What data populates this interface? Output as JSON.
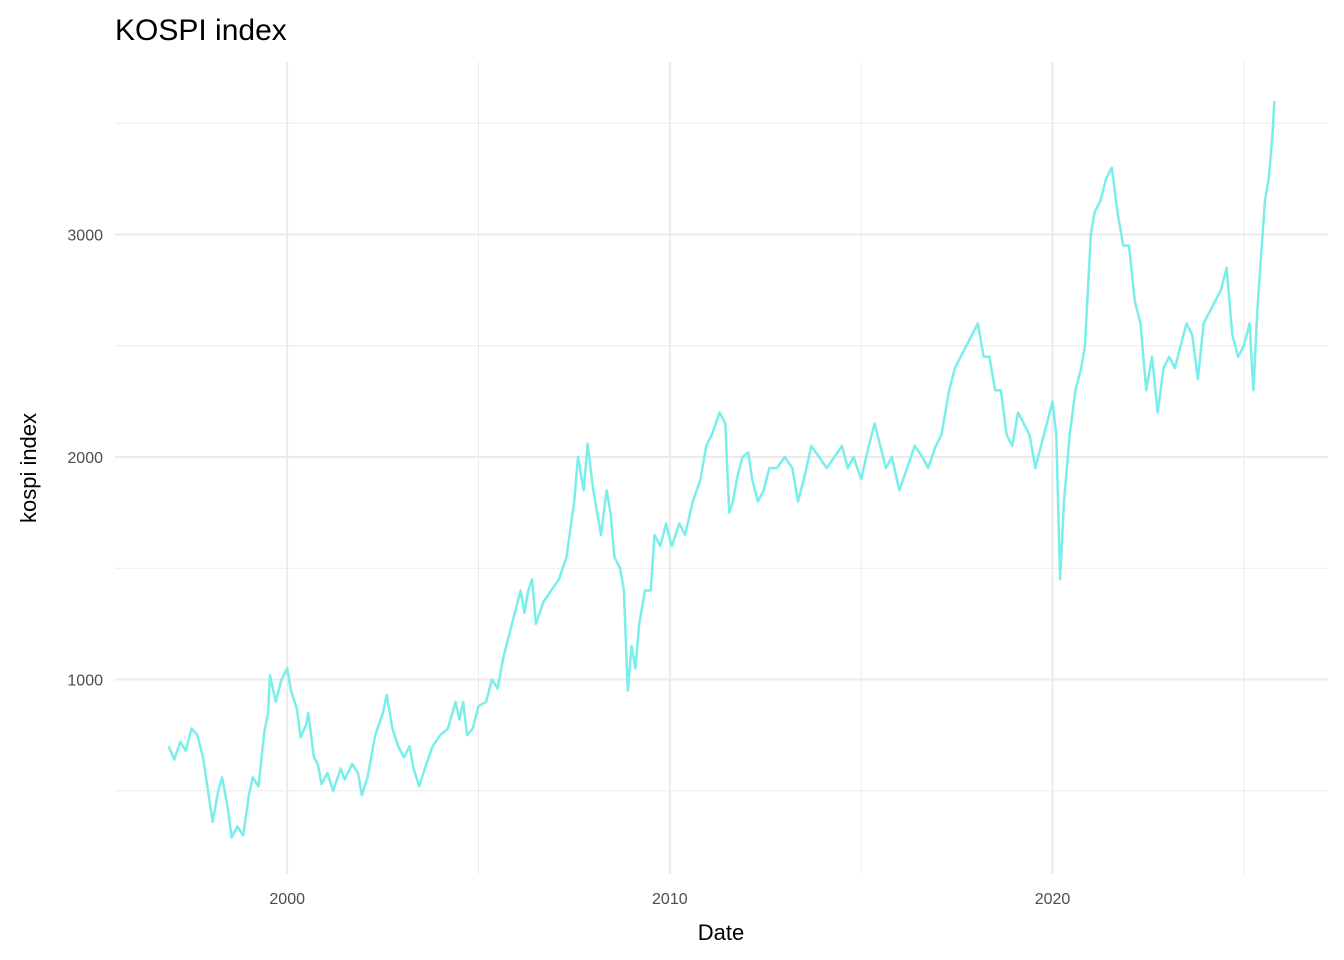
{
  "chart_data": {
    "type": "line",
    "title": "KOSPI index",
    "x_label": "Date",
    "y_label": "kospi index",
    "xlim": [
      1995.5,
      2027.2
    ],
    "ylim": [
      126,
      3775
    ],
    "xticks": [
      2000,
      2010,
      2020
    ],
    "yticks": [
      1000,
      2000,
      3000
    ],
    "xminor": [
      2005,
      2015,
      2025
    ],
    "yminor": [
      500,
      1500,
      2500,
      3500
    ],
    "grid": true,
    "series": [
      {
        "name": "kospi",
        "color": "#7aeeea",
        "x": [
          1996.9,
          1997.05,
          1997.2,
          1997.35,
          1997.5,
          1997.65,
          1997.8,
          1997.95,
          1998.05,
          1998.2,
          1998.3,
          1998.45,
          1998.55,
          1998.7,
          1998.85,
          1999.0,
          1999.1,
          1999.25,
          1999.4,
          1999.5,
          1999.55,
          1999.7,
          1999.85,
          2000.0,
          2000.1,
          2000.25,
          2000.35,
          2000.5,
          2000.55,
          2000.7,
          2000.8,
          2000.9,
          2001.05,
          2001.2,
          2001.4,
          2001.5,
          2001.7,
          2001.85,
          2001.95,
          2002.1,
          2002.3,
          2002.5,
          2002.6,
          2002.75,
          2002.9,
          2003.05,
          2003.2,
          2003.3,
          2003.45,
          2003.6,
          2003.8,
          2004.0,
          2004.2,
          2004.4,
          2004.5,
          2004.6,
          2004.7,
          2004.85,
          2005.0,
          2005.2,
          2005.35,
          2005.5,
          2005.65,
          2005.8,
          2005.95,
          2006.1,
          2006.2,
          2006.3,
          2006.4,
          2006.5,
          2006.7,
          2006.9,
          2007.1,
          2007.3,
          2007.5,
          2007.6,
          2007.75,
          2007.85,
          2008.0,
          2008.2,
          2008.35,
          2008.45,
          2008.55,
          2008.7,
          2008.8,
          2008.9,
          2009.0,
          2009.1,
          2009.2,
          2009.35,
          2009.5,
          2009.6,
          2009.75,
          2009.9,
          2010.05,
          2010.25,
          2010.4,
          2010.6,
          2010.8,
          2010.95,
          2011.1,
          2011.3,
          2011.45,
          2011.55,
          2011.65,
          2011.75,
          2011.9,
          2012.05,
          2012.15,
          2012.3,
          2012.45,
          2012.6,
          2012.8,
          2013.0,
          2013.2,
          2013.35,
          2013.5,
          2013.7,
          2013.9,
          2014.1,
          2014.3,
          2014.5,
          2014.65,
          2014.8,
          2015.0,
          2015.2,
          2015.35,
          2015.5,
          2015.65,
          2015.8,
          2016.0,
          2016.2,
          2016.4,
          2016.6,
          2016.75,
          2016.95,
          2017.1,
          2017.3,
          2017.45,
          2017.6,
          2017.75,
          2017.9,
          2018.05,
          2018.2,
          2018.35,
          2018.5,
          2018.65,
          2018.8,
          2018.95,
          2019.1,
          2019.25,
          2019.4,
          2019.55,
          2019.7,
          2019.85,
          2020.0,
          2020.1,
          2020.2,
          2020.3,
          2020.45,
          2020.6,
          2020.75,
          2020.85,
          2021.0,
          2021.1,
          2021.25,
          2021.4,
          2021.55,
          2021.7,
          2021.85,
          2022.0,
          2022.15,
          2022.3,
          2022.45,
          2022.6,
          2022.75,
          2022.9,
          2023.05,
          2023.2,
          2023.35,
          2023.5,
          2023.65,
          2023.8,
          2023.95,
          2024.1,
          2024.25,
          2024.4,
          2024.55,
          2024.7,
          2024.85,
          2025.0,
          2025.15,
          2025.25,
          2025.35,
          2025.45,
          2025.55,
          2025.65,
          2025.75,
          2025.8
        ],
        "values": [
          700,
          640,
          720,
          680,
          780,
          750,
          650,
          480,
          360,
          500,
          560,
          420,
          290,
          340,
          300,
          480,
          560,
          520,
          760,
          850,
          1020,
          900,
          1000,
          1050,
          950,
          870,
          740,
          800,
          850,
          650,
          620,
          530,
          580,
          500,
          600,
          550,
          620,
          580,
          480,
          560,
          750,
          850,
          930,
          780,
          700,
          650,
          700,
          600,
          520,
          600,
          700,
          750,
          780,
          900,
          820,
          900,
          750,
          780,
          880,
          900,
          1000,
          960,
          1100,
          1200,
          1300,
          1400,
          1300,
          1400,
          1450,
          1250,
          1350,
          1400,
          1450,
          1550,
          1800,
          2000,
          1850,
          2060,
          1850,
          1650,
          1850,
          1750,
          1550,
          1500,
          1400,
          950,
          1150,
          1050,
          1250,
          1400,
          1400,
          1650,
          1600,
          1700,
          1600,
          1700,
          1650,
          1800,
          1900,
          2050,
          2100,
          2200,
          2150,
          1750,
          1800,
          1900,
          2000,
          2020,
          1900,
          1800,
          1850,
          1950,
          1950,
          2000,
          1950,
          1800,
          1900,
          2050,
          2000,
          1950,
          2000,
          2050,
          1950,
          2000,
          1900,
          2050,
          2150,
          2050,
          1950,
          2000,
          1850,
          1950,
          2050,
          2000,
          1950,
          2050,
          2100,
          2300,
          2400,
          2450,
          2500,
          2550,
          2600,
          2450,
          2450,
          2300,
          2300,
          2100,
          2050,
          2200,
          2150,
          2100,
          1950,
          2050,
          2150,
          2250,
          2100,
          1450,
          1800,
          2100,
          2300,
          2400,
          2500,
          3000,
          3100,
          3150,
          3250,
          3300,
          3100,
          2950,
          2950,
          2700,
          2600,
          2300,
          2450,
          2200,
          2400,
          2450,
          2400,
          2500,
          2600,
          2550,
          2350,
          2600,
          2650,
          2700,
          2750,
          2850,
          2550,
          2450,
          2500,
          2600,
          2300,
          2650,
          2900,
          3150,
          3250,
          3450,
          3600
        ]
      }
    ]
  }
}
